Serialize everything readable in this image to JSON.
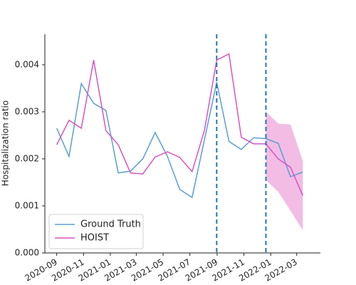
{
  "chart_data": {
    "type": "line",
    "ylabel": "Hospitalization ratio",
    "x": [
      "2020-09-01",
      "2020-09-29",
      "2020-10-27",
      "2020-11-24",
      "2020-12-22",
      "2021-01-19",
      "2021-02-16",
      "2021-03-16",
      "2021-04-13",
      "2021-05-11",
      "2021-06-08",
      "2021-07-06",
      "2021-08-03",
      "2021-08-31",
      "2021-09-28",
      "2021-10-26",
      "2021-11-23",
      "2021-12-21",
      "2022-01-18",
      "2022-02-15",
      "2022-03-15"
    ],
    "series": [
      {
        "name": "Ground Truth",
        "color": "#5a9fd4",
        "values": [
          0.00265,
          0.00205,
          0.0036,
          0.00318,
          0.00303,
          0.0017,
          0.00174,
          0.002,
          0.00256,
          0.00205,
          0.00135,
          0.00118,
          0.0024,
          0.00363,
          0.00237,
          0.0022,
          0.00245,
          0.00243,
          0.00233,
          0.00162,
          0.00172
        ]
      },
      {
        "name": "HOIST",
        "color": "#d654c4",
        "values": [
          0.0023,
          0.00282,
          0.00265,
          0.0041,
          0.0026,
          0.0023,
          0.0017,
          0.00168,
          0.00204,
          0.00215,
          0.00203,
          0.00173,
          0.0026,
          0.0041,
          0.00423,
          0.00246,
          0.00232,
          0.00232,
          0.002,
          0.00182,
          0.00122
        ]
      }
    ],
    "band": {
      "color": "#f0b0e0",
      "upper": [
        null,
        null,
        null,
        null,
        null,
        null,
        null,
        null,
        null,
        null,
        null,
        null,
        null,
        null,
        null,
        null,
        null,
        0.003,
        0.00275,
        0.00273,
        0.00195
      ],
      "lower": [
        null,
        null,
        null,
        null,
        null,
        null,
        null,
        null,
        null,
        null,
        null,
        null,
        null,
        null,
        null,
        null,
        null,
        0.00155,
        0.0013,
        0.0009,
        0.00048
      ]
    },
    "vlines": [
      "2021-08-31",
      "2021-12-21"
    ],
    "vline_color": "#1f77b4",
    "xlim": [
      "2020-08-05",
      "2022-04-24"
    ],
    "xticks": [
      {
        "value": "2020-09-01",
        "label": "2020-09"
      },
      {
        "value": "2020-11-01",
        "label": "2020-11"
      },
      {
        "value": "2021-01-01",
        "label": "2021-01"
      },
      {
        "value": "2021-03-01",
        "label": "2021-03"
      },
      {
        "value": "2021-05-01",
        "label": "2021-05"
      },
      {
        "value": "2021-07-01",
        "label": "2021-07"
      },
      {
        "value": "2021-09-01",
        "label": "2021-09"
      },
      {
        "value": "2021-11-01",
        "label": "2021-11"
      },
      {
        "value": "2022-01-01",
        "label": "2022-01"
      },
      {
        "value": "2022-03-01",
        "label": "2022-03"
      }
    ],
    "ylim": [
      0,
      0.00465
    ],
    "yticks": [
      {
        "value": 0,
        "label": "0.000"
      },
      {
        "value": 0.001,
        "label": "0.001"
      },
      {
        "value": 0.002,
        "label": "0.002"
      },
      {
        "value": 0.003,
        "label": "0.003"
      },
      {
        "value": 0.004,
        "label": "0.004"
      }
    ],
    "legend": "lower left",
    "grid": false
  }
}
